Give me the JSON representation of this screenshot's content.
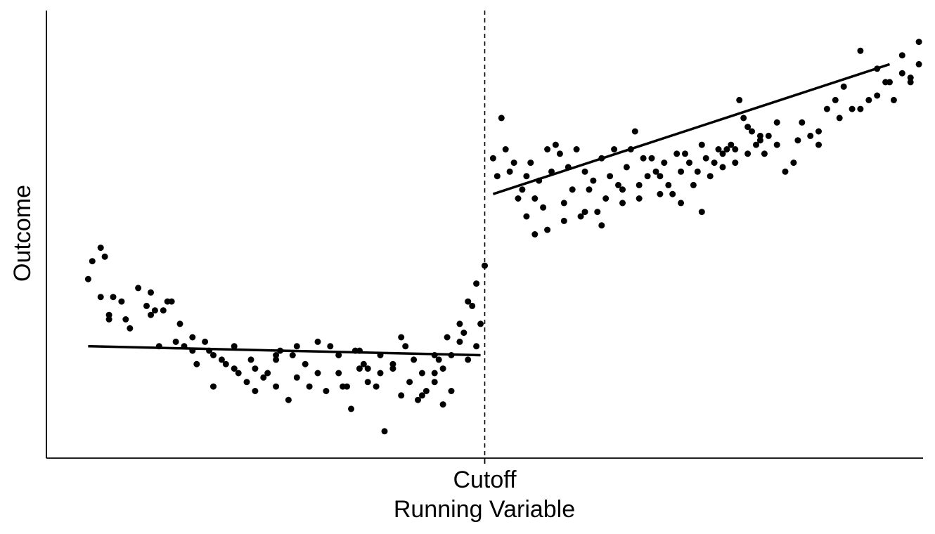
{
  "chart_data": {
    "type": "scatter",
    "title": "",
    "xlabel": "Running Variable",
    "ylabel": "Outcome",
    "xlim": [
      -1.05,
      1.05
    ],
    "ylim": [
      0,
      10
    ],
    "cutoff": 0,
    "x_tick_labels": [
      {
        "x": 0,
        "label": "Cutoff"
      }
    ],
    "grid": false,
    "legend": "none",
    "colors": {
      "points": "#000000",
      "lines": "#000000",
      "cutoff_line": "#000000"
    },
    "points": [
      [
        -0.95,
        4.0
      ],
      [
        -0.94,
        4.4
      ],
      [
        -0.92,
        4.7
      ],
      [
        -0.91,
        4.5
      ],
      [
        -0.92,
        3.6
      ],
      [
        -0.9,
        3.2
      ],
      [
        -0.89,
        3.6
      ],
      [
        -0.87,
        3.5
      ],
      [
        -0.86,
        3.1
      ],
      [
        -0.83,
        3.8
      ],
      [
        -0.8,
        3.7
      ],
      [
        -0.79,
        3.3
      ],
      [
        -0.78,
        2.5
      ],
      [
        -0.76,
        3.5
      ],
      [
        -0.73,
        3.0
      ],
      [
        -0.72,
        2.5
      ],
      [
        -0.7,
        2.4
      ],
      [
        -0.67,
        2.6
      ],
      [
        -0.65,
        1.6
      ],
      [
        -0.63,
        2.2
      ],
      [
        -0.6,
        2.0
      ],
      [
        -0.57,
        1.7
      ],
      [
        -0.55,
        1.5
      ],
      [
        -0.53,
        1.8
      ],
      [
        -0.5,
        1.6
      ],
      [
        -0.47,
        1.3
      ],
      [
        -0.45,
        1.8
      ],
      [
        -0.42,
        1.6
      ],
      [
        -0.4,
        1.9
      ],
      [
        -0.38,
        1.5
      ],
      [
        -0.35,
        2.3
      ],
      [
        -0.32,
        1.1
      ],
      [
        -0.3,
        2.4
      ],
      [
        -0.28,
        2.0
      ],
      [
        -0.25,
        2.3
      ],
      [
        -0.2,
        1.4
      ],
      [
        -0.18,
        1.7
      ],
      [
        -0.16,
        1.3
      ],
      [
        -0.14,
        1.5
      ],
      [
        -0.12,
        1.7
      ],
      [
        -0.1,
        2.0
      ],
      [
        -0.08,
        2.3
      ],
      [
        -0.06,
        2.6
      ],
      [
        -0.04,
        2.2
      ],
      [
        -0.02,
        2.5
      ],
      [
        -0.9,
        3.1
      ],
      [
        -0.85,
        2.9
      ],
      [
        -0.81,
        3.4
      ],
      [
        -0.77,
        3.3
      ],
      [
        -0.74,
        2.6
      ],
      [
        -0.69,
        2.1
      ],
      [
        -0.66,
        2.4
      ],
      [
        -0.62,
        2.1
      ],
      [
        -0.59,
        1.9
      ],
      [
        -0.56,
        2.2
      ],
      [
        -0.52,
        1.9
      ],
      [
        -0.49,
        2.4
      ],
      [
        -0.46,
        2.3
      ],
      [
        -0.43,
        2.1
      ],
      [
        -0.4,
        2.6
      ],
      [
        -0.37,
        2.5
      ],
      [
        -0.34,
        1.6
      ],
      [
        -0.31,
        2.4
      ],
      [
        -0.28,
        1.7
      ],
      [
        -0.24,
        0.6
      ],
      [
        -0.22,
        2.0
      ],
      [
        -0.2,
        2.7
      ],
      [
        -0.17,
        2.2
      ],
      [
        -0.15,
        1.4
      ],
      [
        -0.12,
        1.9
      ],
      [
        -0.1,
        1.2
      ],
      [
        -0.08,
        1.5
      ],
      [
        -0.05,
        2.8
      ],
      [
        -0.03,
        3.4
      ],
      [
        -0.01,
        3.0
      ],
      [
        -0.6,
        2.5
      ],
      [
        -0.5,
        2.3
      ],
      [
        -0.45,
        2.5
      ],
      [
        -0.33,
        1.6
      ],
      [
        -0.29,
        2.1
      ],
      [
        -0.26,
        1.6
      ],
      [
        -0.22,
        2.1
      ],
      [
        -0.19,
        2.5
      ],
      [
        -0.15,
        1.9
      ],
      [
        -0.11,
        2.2
      ],
      [
        -0.09,
        2.7
      ],
      [
        -0.06,
        3.0
      ],
      [
        -0.04,
        3.5
      ],
      [
        -0.02,
        3.9
      ],
      [
        0.0,
        4.3
      ],
      [
        -0.8,
        3.2
      ],
      [
        -0.75,
        3.5
      ],
      [
        -0.7,
        2.7
      ],
      [
        -0.65,
        2.3
      ],
      [
        -0.55,
        2.0
      ],
      [
        -0.5,
        2.2
      ],
      [
        -0.35,
        1.9
      ],
      [
        -0.3,
        2.0
      ],
      [
        -0.25,
        1.9
      ],
      [
        -0.12,
        2.3
      ],
      [
        0.02,
        6.7
      ],
      [
        0.03,
        6.3
      ],
      [
        0.04,
        7.6
      ],
      [
        0.05,
        6.9
      ],
      [
        0.06,
        6.4
      ],
      [
        0.07,
        6.6
      ],
      [
        0.08,
        5.8
      ],
      [
        0.09,
        6.0
      ],
      [
        0.1,
        6.3
      ],
      [
        0.11,
        6.6
      ],
      [
        0.12,
        5.8
      ],
      [
        0.13,
        6.2
      ],
      [
        0.14,
        5.6
      ],
      [
        0.15,
        6.9
      ],
      [
        0.16,
        6.4
      ],
      [
        0.17,
        7.0
      ],
      [
        0.18,
        6.8
      ],
      [
        0.19,
        5.7
      ],
      [
        0.2,
        6.5
      ],
      [
        0.21,
        6.0
      ],
      [
        0.22,
        6.9
      ],
      [
        0.23,
        5.4
      ],
      [
        0.24,
        6.4
      ],
      [
        0.25,
        6.0
      ],
      [
        0.26,
        6.2
      ],
      [
        0.27,
        5.5
      ],
      [
        0.28,
        6.7
      ],
      [
        0.29,
        5.8
      ],
      [
        0.3,
        6.3
      ],
      [
        0.31,
        6.9
      ],
      [
        0.32,
        6.1
      ],
      [
        0.33,
        5.7
      ],
      [
        0.34,
        6.5
      ],
      [
        0.35,
        6.9
      ],
      [
        0.36,
        7.3
      ],
      [
        0.37,
        6.1
      ],
      [
        0.38,
        6.7
      ],
      [
        0.39,
        6.3
      ],
      [
        0.4,
        6.7
      ],
      [
        0.41,
        6.4
      ],
      [
        0.42,
        6.3
      ],
      [
        0.43,
        6.6
      ],
      [
        0.44,
        6.1
      ],
      [
        0.45,
        5.9
      ],
      [
        0.46,
        6.8
      ],
      [
        0.47,
        6.4
      ],
      [
        0.48,
        6.8
      ],
      [
        0.49,
        6.6
      ],
      [
        0.5,
        6.1
      ],
      [
        0.51,
        6.4
      ],
      [
        0.52,
        7.0
      ],
      [
        0.53,
        6.7
      ],
      [
        0.54,
        6.3
      ],
      [
        0.55,
        6.6
      ],
      [
        0.56,
        6.9
      ],
      [
        0.57,
        6.8
      ],
      [
        0.58,
        6.9
      ],
      [
        0.59,
        7.0
      ],
      [
        0.6,
        6.9
      ],
      [
        0.61,
        8.0
      ],
      [
        0.62,
        7.6
      ],
      [
        0.63,
        6.8
      ],
      [
        0.64,
        7.3
      ],
      [
        0.65,
        7.0
      ],
      [
        0.66,
        7.1
      ],
      [
        0.67,
        6.8
      ],
      [
        0.68,
        7.2
      ],
      [
        0.7,
        7.0
      ],
      [
        0.72,
        6.4
      ],
      [
        0.74,
        6.6
      ],
      [
        0.76,
        7.5
      ],
      [
        0.78,
        7.2
      ],
      [
        0.8,
        7.0
      ],
      [
        0.82,
        7.8
      ],
      [
        0.84,
        8.0
      ],
      [
        0.86,
        8.3
      ],
      [
        0.88,
        7.8
      ],
      [
        0.9,
        9.1
      ],
      [
        0.92,
        8.0
      ],
      [
        0.94,
        8.7
      ],
      [
        0.96,
        8.4
      ],
      [
        0.98,
        8.0
      ],
      [
        1.0,
        9.0
      ],
      [
        1.02,
        8.5
      ],
      [
        1.04,
        9.3
      ],
      [
        0.1,
        5.4
      ],
      [
        0.12,
        5.0
      ],
      [
        0.15,
        5.1
      ],
      [
        0.19,
        5.3
      ],
      [
        0.24,
        5.5
      ],
      [
        0.28,
        5.2
      ],
      [
        0.33,
        6.0
      ],
      [
        0.37,
        5.8
      ],
      [
        0.42,
        5.9
      ],
      [
        0.47,
        5.7
      ],
      [
        0.52,
        5.5
      ],
      [
        0.57,
        6.5
      ],
      [
        0.6,
        6.6
      ],
      [
        0.63,
        7.4
      ],
      [
        0.66,
        7.2
      ],
      [
        0.7,
        7.5
      ],
      [
        0.75,
        7.1
      ],
      [
        0.8,
        7.3
      ],
      [
        0.85,
        7.6
      ],
      [
        0.9,
        7.8
      ],
      [
        0.94,
        8.1
      ],
      [
        0.97,
        8.4
      ],
      [
        1.0,
        8.6
      ],
      [
        1.02,
        8.4
      ],
      [
        1.04,
        8.8
      ]
    ],
    "fit_lines": [
      {
        "x": [
          -0.95,
          -0.01
        ],
        "y": [
          2.5,
          2.3
        ]
      },
      {
        "x": [
          0.02,
          0.97
        ],
        "y": [
          5.9,
          8.8
        ]
      }
    ]
  }
}
